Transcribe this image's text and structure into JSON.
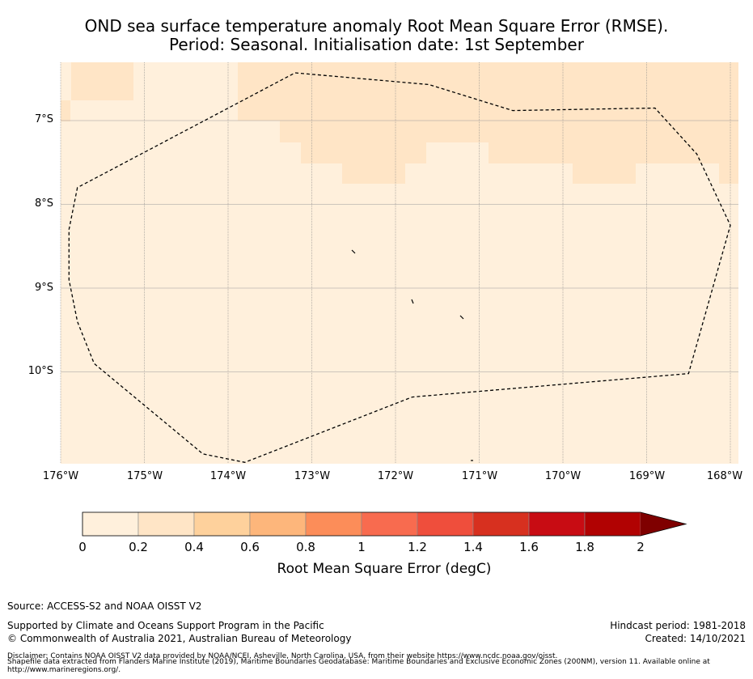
{
  "title_line1": "OND sea surface temperature anomaly Root Mean Square Error (RMSE).",
  "title_line2": "Period: Seasonal. Initialisation date: 1st September",
  "map": {
    "lon_range": [
      -176,
      -168
    ],
    "lat_range": [
      -11.1,
      -6.3
    ],
    "x_ticks": [
      "176°W",
      "175°W",
      "174°W",
      "173°W",
      "172°W",
      "171°W",
      "170°W",
      "169°W",
      "168°W"
    ],
    "y_ticks": [
      "7°S",
      "8°S",
      "9°S",
      "10°S"
    ],
    "background_color": "#fff0dc",
    "elevated_color": "#ffe5c6",
    "eez_boundary": [
      [
        -175.8,
        -7.8
      ],
      [
        -175.9,
        -8.3
      ],
      [
        -175.9,
        -8.9
      ],
      [
        -175.8,
        -9.4
      ],
      [
        -175.6,
        -9.9
      ],
      [
        -174.3,
        -10.98
      ],
      [
        -173.8,
        -11.08
      ],
      [
        -171.8,
        -10.3
      ],
      [
        -168.5,
        -10.02
      ],
      [
        -168.0,
        -8.25
      ],
      [
        -168.4,
        -7.4
      ],
      [
        -168.9,
        -6.85
      ],
      [
        -170.6,
        -6.88
      ],
      [
        -171.6,
        -6.57
      ],
      [
        -173.2,
        -6.43
      ],
      [
        -175.8,
        -7.8
      ]
    ]
  },
  "colorbar": {
    "label": "Root Mean Square Error (degC)",
    "ticks": [
      "0",
      "0.2",
      "0.4",
      "0.6",
      "0.8",
      "1",
      "1.2",
      "1.4",
      "1.6",
      "1.8",
      "2"
    ],
    "colors": [
      "#fff0dc",
      "#ffe5c6",
      "#fed19c",
      "#fdb67b",
      "#fc8d59",
      "#f86b4f",
      "#ef4e3c",
      "#d7301f",
      "#c80c13",
      "#b10202",
      "#7f0000"
    ]
  },
  "footer": {
    "source": "Source: ACCESS-S2 and NOAA OISST V2",
    "supported": "Supported by Climate and Oceans Support Program in the Pacific",
    "copyright": "© Commonwealth of Australia 2021, Australian Bureau of Meteorology",
    "hindcast": "Hindcast period: 1981-2018",
    "created": "Created: 14/10/2021",
    "disclaimer1": "Disclaimer: Contains NOAA OISST V2 data provided by NOAA/NCEI, Asheville, North Carolina, USA, from their website https://www.ncdc.noaa.gov/oisst.",
    "disclaimer2": "Shapefile data extracted from Flanders Marine Institute (2019), Maritime Boundaries Geodatabase: Maritime Boundaries and Exclusive Economic Zones (200NM), version 11. Available online at",
    "disclaimer3": "http://www.marineregions.org/."
  }
}
